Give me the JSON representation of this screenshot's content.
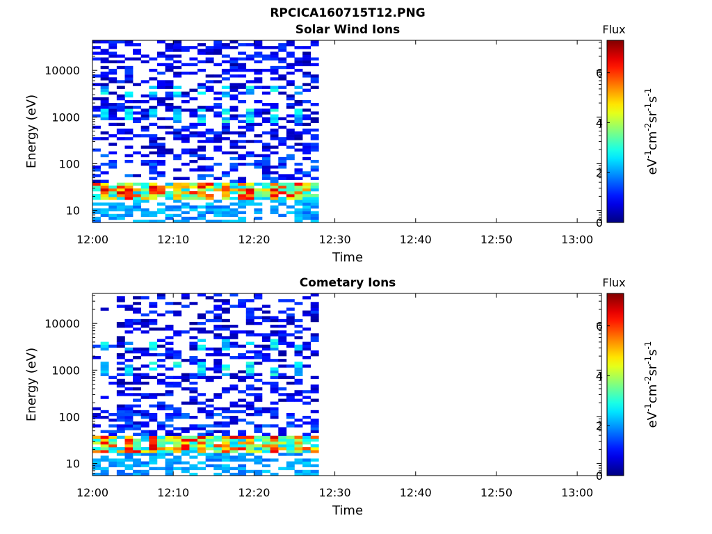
{
  "figure": {
    "title": "RPCICA160715T12.PNG"
  },
  "chart_data": [
    {
      "type": "heatmap",
      "title": "Solar Wind Ions",
      "xlabel": "Time",
      "ylabel": "Energy (eV)",
      "x_ticks": [
        "12:00",
        "12:10",
        "12:20",
        "12:30",
        "12:40",
        "12:50",
        "13:00"
      ],
      "x_range_minutes": [
        0,
        63
      ],
      "data_end_minutes": 28,
      "y_scale": "log",
      "y_ticks": [
        "10",
        "100",
        "1000",
        "10000"
      ],
      "y_range": [
        5.5,
        44000
      ],
      "colorbar": {
        "title": "Flux",
        "label": "eV⁻¹cm⁻²sr⁻¹s⁻¹",
        "ticks": [
          "0",
          "2",
          "4",
          "6"
        ],
        "range": [
          0,
          7.3
        ],
        "colormap": "jet"
      },
      "grid": false,
      "band_flux_estimates": [
        {
          "energy_ev": 10,
          "flux_range": [
            1.5,
            2.5
          ]
        },
        {
          "energy_ev": 25,
          "flux_range": [
            4,
            6.5
          ]
        },
        {
          "energy_ev": 100,
          "flux_range": [
            0.5,
            1.5
          ]
        },
        {
          "energy_ev": 1000,
          "flux_range": [
            1,
            3
          ]
        },
        {
          "energy_ev": 10000,
          "flux_range": [
            0.3,
            1.2
          ]
        }
      ]
    },
    {
      "type": "heatmap",
      "title": "Cometary Ions",
      "xlabel": "Time",
      "ylabel": "Energy (eV)",
      "x_ticks": [
        "12:00",
        "12:10",
        "12:20",
        "12:30",
        "12:40",
        "12:50",
        "13:00"
      ],
      "x_range_minutes": [
        0,
        63
      ],
      "data_end_minutes": 28,
      "y_scale": "log",
      "y_ticks": [
        "10",
        "100",
        "1000",
        "10000"
      ],
      "y_range": [
        5.5,
        44000
      ],
      "colorbar": {
        "title": "Flux",
        "label": "eV⁻¹cm⁻²sr⁻¹s⁻¹",
        "ticks": [
          "0",
          "2",
          "4",
          "6"
        ],
        "range": [
          0,
          7.3
        ],
        "colormap": "jet"
      },
      "grid": false,
      "band_flux_estimates": [
        {
          "energy_ev": 10,
          "flux_range": [
            1.5,
            2.5
          ]
        },
        {
          "energy_ev": 25,
          "flux_range": [
            4,
            6.5
          ]
        },
        {
          "energy_ev": 100,
          "flux_range": [
            0.5,
            2
          ]
        },
        {
          "energy_ev": 1000,
          "flux_range": [
            1,
            3
          ]
        },
        {
          "energy_ev": 10000,
          "flux_range": [
            0.3,
            1.2
          ]
        }
      ]
    }
  ]
}
